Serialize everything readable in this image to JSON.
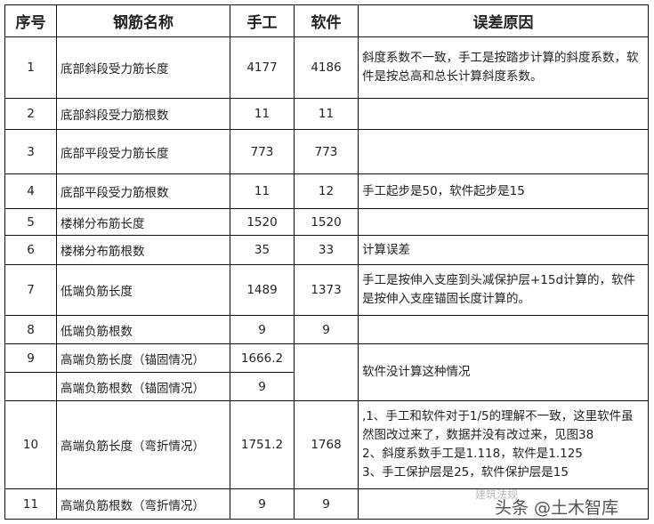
{
  "headers": [
    "序号",
    "钢筋名称",
    "手工",
    "软件",
    "误差原因"
  ],
  "rows": [
    {
      "no": "1",
      "name": "底部斜段受力筋长度",
      "manual": "4177",
      "software": "4186",
      "reason": "斜度系数不一致，手工是按踏步计算的斜度系数，软件是按总高和总长计算斜度系数。"
    },
    {
      "no": "2",
      "name": "底部斜段受力筋根数",
      "manual": "11",
      "software": "11",
      "reason": ""
    },
    {
      "no": "3",
      "name": "底部平段受力筋长度",
      "manual": "773",
      "software": "773",
      "reason": ""
    },
    {
      "no": "4",
      "name": "底部平段受力筋根数",
      "manual": "11",
      "software": "12",
      "reason": "手工起步是50，软件起步是15"
    },
    {
      "no": "5",
      "name": "楼梯分布筋长度",
      "manual": "1520",
      "software": "1520",
      "reason": ""
    },
    {
      "no": "6",
      "name": "楼梯分布筋根数",
      "manual": "35",
      "software": "33",
      "reason": "计算误差"
    },
    {
      "no": "7",
      "name": "低端负筋长度",
      "manual": "1489",
      "software": "1373",
      "reason": "手工是按伸入支座到头减保护层+15d计算的，软件是按伸入支座锚固长度计算的。"
    },
    {
      "no": "8",
      "name": "低端负筋根数",
      "manual": "9",
      "software": "9",
      "reason": ""
    },
    {
      "no": "9",
      "name": "高端负筋长度（锚固情况）",
      "manual": "1666.2",
      "software": "",
      "reason": "软件没计算这种情况"
    },
    {
      "no": "",
      "name": "高端负筋根数（锚固情况）",
      "manual": "9",
      "software": "",
      "reason": ""
    },
    {
      "no": "10",
      "name": "高端负筋长度（弯折情况）",
      "manual": "1751.2",
      "software": "1768",
      "reason_lines": [
        ",1、手工和软件对于1/5的理解不一致，这里软件虽然图改过来了，数据并没有改过来，见图38",
        "2、斜度系数手工是1.118，软件是1.125",
        "3、手工保护层是25，软件保护层是15"
      ]
    },
    {
      "no": "11",
      "name": "高端负筋根数（弯折情况）",
      "manual": "9",
      "software": "9",
      "reason": ""
    }
  ],
  "watermark": "头条 @土木智库",
  "watermark_faint": "建筑法规"
}
